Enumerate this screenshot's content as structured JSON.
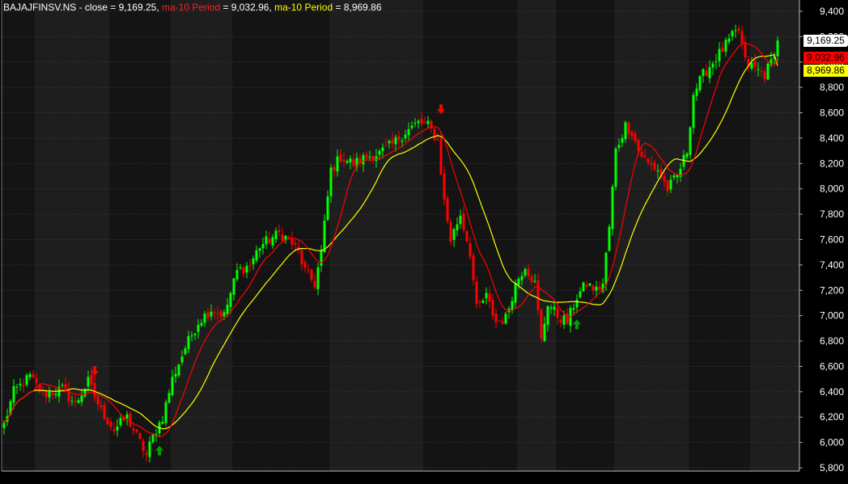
{
  "header": {
    "symbol_text": "BAJAJFINSV.NS - close = 9,169.25, ",
    "ma1_text": "ma-10 Period",
    "ma1_value_text": " = 9,032.96, ",
    "ma2_text": "ma-10 Period",
    "ma2_value_text": " = 8,969.86"
  },
  "labels": {
    "close": "9,169.25",
    "ma1": "9,032.96",
    "ma2": "8,969.86"
  },
  "colors": {
    "background": "#000000",
    "band_dark": "#141414",
    "band_light": "#1e1e1e",
    "up": "#00ff00",
    "down": "#ff0000",
    "ma1": "#ff0000",
    "ma2": "#ffff00",
    "grid": "#3a3a3a",
    "axis_text": "#ffffff",
    "buy_arrow": "#00a000",
    "sell_arrow": "#ff0000"
  },
  "chart_data": {
    "type": "candlestick",
    "title": "BAJAJFINSV.NS",
    "ylim": [
      5800,
      9400
    ],
    "yticks": [
      5800,
      6000,
      6200,
      6400,
      6600,
      6800,
      7000,
      7200,
      7400,
      7600,
      7800,
      8000,
      8200,
      8400,
      8600,
      8800,
      9000,
      9200,
      9400
    ],
    "ytick_labels": [
      "5,800",
      "6,000",
      "6,200",
      "6,400",
      "6,600",
      "6,800",
      "7,000",
      "7,200",
      "7,400",
      "7,600",
      "7,800",
      "8,000",
      "8,200",
      "8,400",
      "8,600",
      "8,800",
      "9,000",
      "9,200",
      "9,400"
    ],
    "grid": true,
    "series": [
      {
        "name": "close",
        "kind": "candles"
      },
      {
        "name": "ma-10 Period",
        "kind": "line",
        "color": "#ff0000"
      },
      {
        "name": "ma-10 Period",
        "kind": "line",
        "color": "#ffff00"
      }
    ],
    "close_anchors": [
      [
        0,
        6140
      ],
      [
        3,
        6400
      ],
      [
        8,
        6520
      ],
      [
        12,
        6380
      ],
      [
        18,
        6420
      ],
      [
        22,
        6300
      ],
      [
        26,
        6480
      ],
      [
        30,
        6250
      ],
      [
        34,
        6100
      ],
      [
        38,
        6200
      ],
      [
        42,
        6000
      ],
      [
        44,
        5900
      ],
      [
        46,
        6050
      ],
      [
        49,
        6200
      ],
      [
        52,
        6500
      ],
      [
        56,
        6750
      ],
      [
        60,
        6950
      ],
      [
        64,
        7050
      ],
      [
        68,
        7000
      ],
      [
        72,
        7350
      ],
      [
        76,
        7400
      ],
      [
        79,
        7550
      ],
      [
        82,
        7600
      ],
      [
        85,
        7650
      ],
      [
        88,
        7600
      ],
      [
        91,
        7500
      ],
      [
        93,
        7350
      ],
      [
        96,
        7250
      ],
      [
        98,
        7500
      ],
      [
        101,
        8150
      ],
      [
        104,
        8250
      ],
      [
        108,
        8200
      ],
      [
        112,
        8250
      ],
      [
        116,
        8280
      ],
      [
        120,
        8350
      ],
      [
        124,
        8450
      ],
      [
        128,
        8520
      ],
      [
        131,
        8500
      ],
      [
        134,
        8380
      ],
      [
        136,
        7900
      ],
      [
        138,
        7600
      ],
      [
        141,
        7800
      ],
      [
        144,
        7500
      ],
      [
        146,
        7050
      ],
      [
        149,
        7150
      ],
      [
        152,
        6950
      ],
      [
        155,
        6980
      ],
      [
        158,
        7250
      ],
      [
        161,
        7400
      ],
      [
        164,
        7250
      ],
      [
        166,
        6800
      ],
      [
        168,
        7100
      ],
      [
        171,
        7000
      ],
      [
        174,
        6950
      ],
      [
        177,
        7150
      ],
      [
        180,
        7250
      ],
      [
        183,
        7200
      ],
      [
        185,
        7250
      ],
      [
        187,
        7700
      ],
      [
        189,
        8300
      ],
      [
        192,
        8500
      ],
      [
        194,
        8450
      ],
      [
        196,
        8300
      ],
      [
        199,
        8200
      ],
      [
        202,
        8150
      ],
      [
        205,
        8000
      ],
      [
        208,
        8100
      ],
      [
        211,
        8300
      ],
      [
        213,
        8750
      ],
      [
        216,
        8900
      ],
      [
        219,
        9000
      ],
      [
        222,
        9100
      ],
      [
        225,
        9200
      ],
      [
        227,
        9250
      ],
      [
        229,
        9000
      ],
      [
        232,
        8950
      ],
      [
        235,
        8900
      ],
      [
        237,
        9000
      ],
      [
        239,
        9169.25
      ]
    ],
    "ma_last": [
      9032.96,
      8969.86
    ],
    "n_bars": 240,
    "signals": [
      {
        "type": "sell",
        "bar": 28
      },
      {
        "type": "buy",
        "bar": 48
      },
      {
        "type": "sell",
        "bar": 135
      },
      {
        "type": "buy",
        "bar": 177
      }
    ],
    "session_breaks": [
      10,
      33,
      52,
      71,
      101,
      130,
      159,
      171,
      189,
      212,
      231
    ]
  }
}
